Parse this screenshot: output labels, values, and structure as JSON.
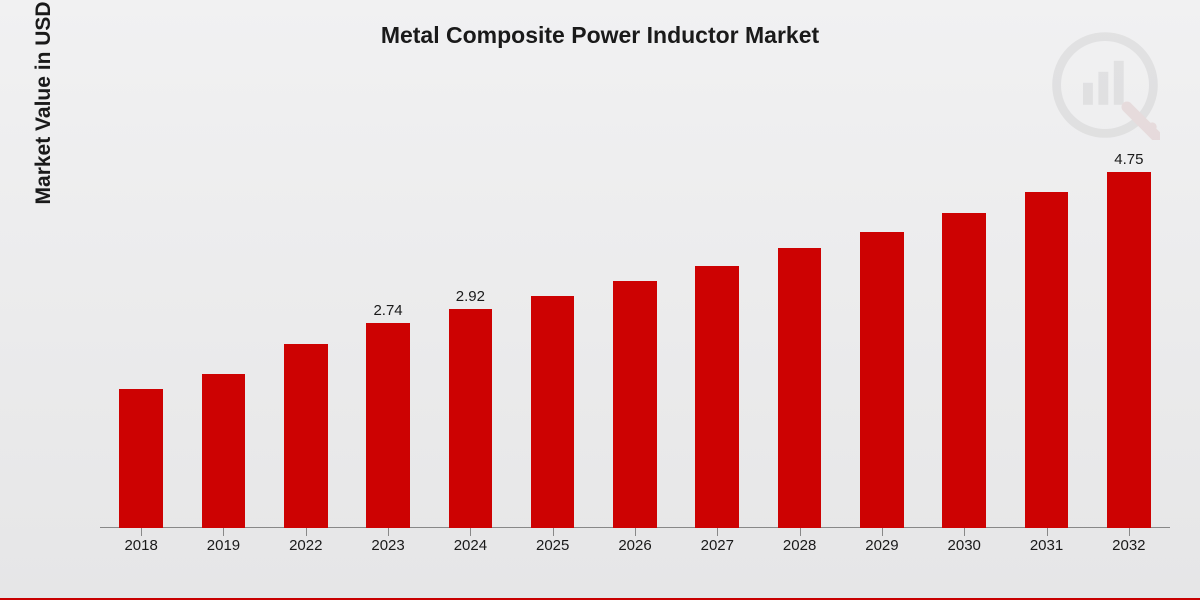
{
  "chart": {
    "type": "bar",
    "title": "Metal Composite Power Inductor Market",
    "title_fontsize": 23,
    "y_axis_label": "Market Value in USD Billion",
    "y_axis_label_fontsize": 21,
    "background_gradient_top": "#f1f1f2",
    "background_gradient_bottom": "#e6e6e7",
    "bottom_border_color": "#c80000",
    "categories": [
      "2018",
      "2019",
      "2022",
      "2023",
      "2024",
      "2025",
      "2026",
      "2027",
      "2028",
      "2029",
      "2030",
      "2031",
      "2032"
    ],
    "values": [
      1.85,
      2.05,
      2.45,
      2.74,
      2.92,
      3.1,
      3.3,
      3.5,
      3.73,
      3.95,
      4.2,
      4.48,
      4.75
    ],
    "value_labels": [
      "",
      "",
      "",
      "2.74",
      "2.92",
      "",
      "",
      "",
      "",
      "",
      "",
      "",
      "4.75"
    ],
    "bar_color": "#cd0202",
    "ylim_max": 5.6,
    "bar_width_pct": 53,
    "axis_color": "#888888",
    "tick_label_fontsize": 15,
    "value_label_fontsize": 15,
    "text_color": "#1a1a1a",
    "watermark_color": "#404040"
  }
}
